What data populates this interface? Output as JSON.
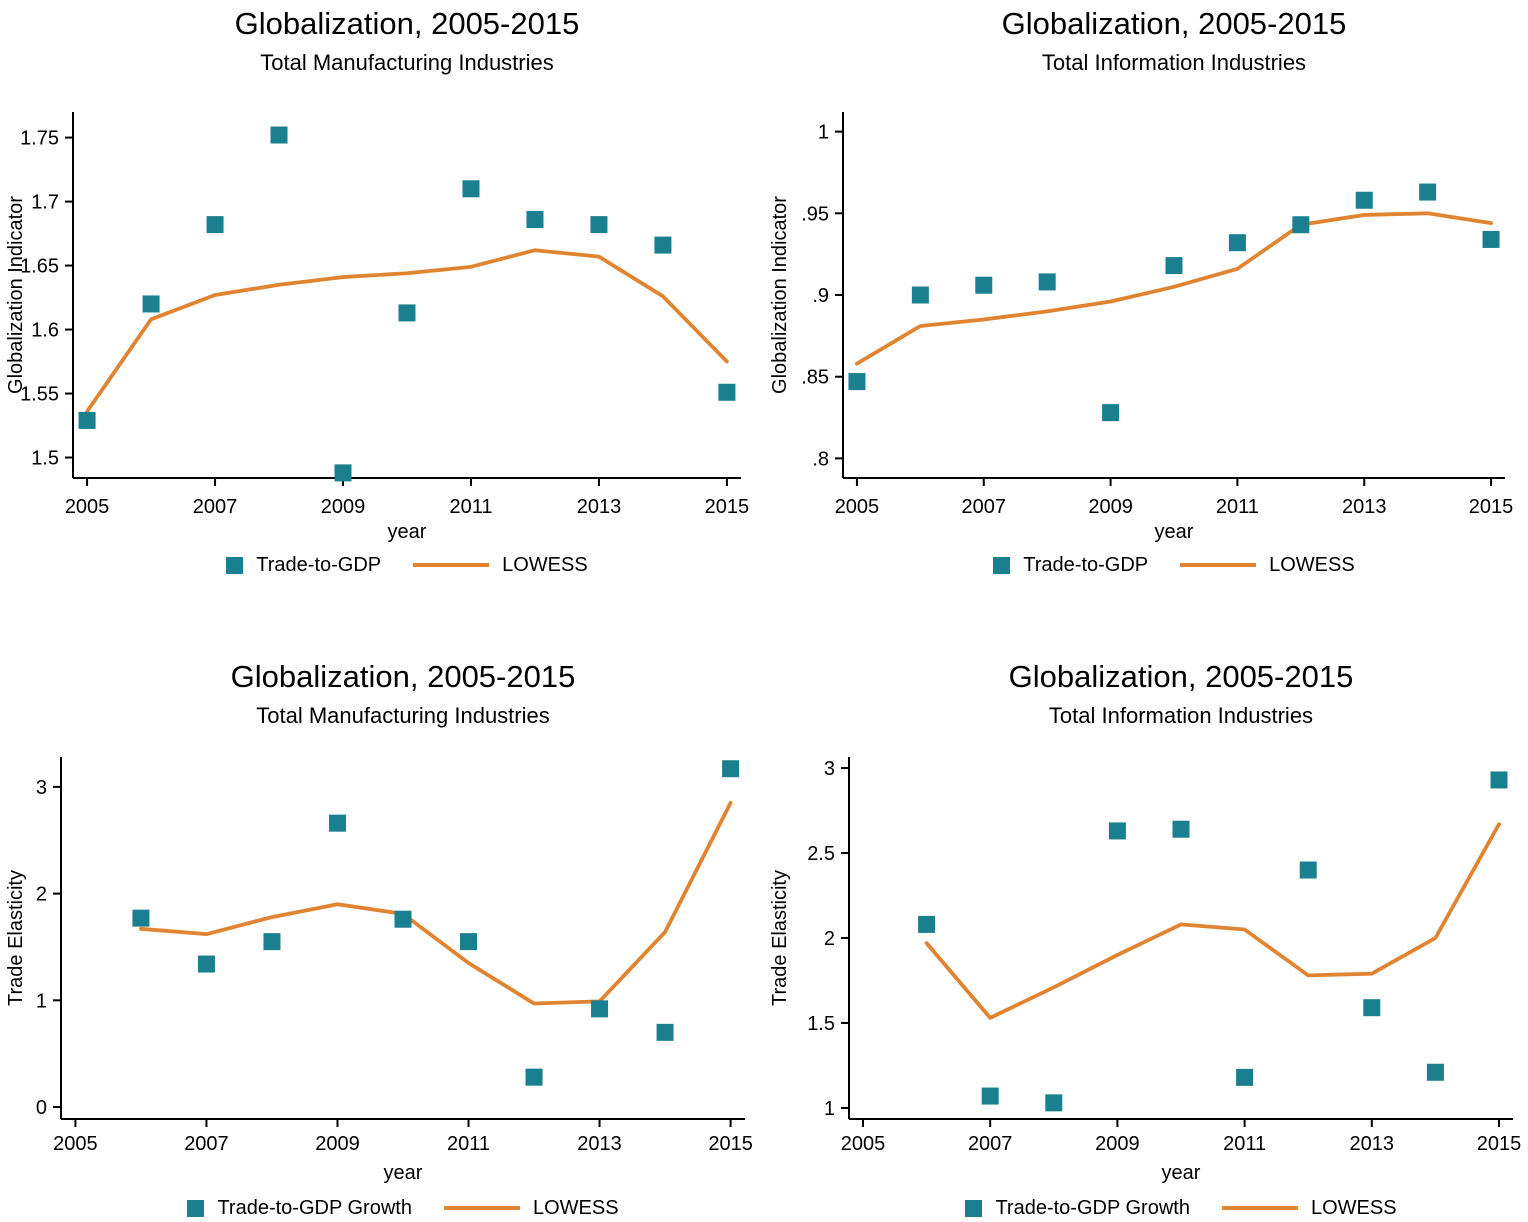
{
  "colors": {
    "scatter": "#1A7F8E",
    "lowess": "#E08432",
    "axis": "#000000",
    "background": "#FFFFFF"
  },
  "chart_data": [
    {
      "id": "manufacturing-globalization-indicator",
      "type": "scatter",
      "title": "Globalization, 2005-2015",
      "subtitle": "Total Manufacturing Industries",
      "xlabel": "year",
      "ylabel": "Globalization Indicator",
      "x": [
        2005,
        2006,
        2007,
        2008,
        2009,
        2010,
        2011,
        2012,
        2013,
        2014,
        2015
      ],
      "series": [
        {
          "name": "Trade-to-GDP",
          "type": "scatter",
          "values": [
            1.529,
            1.62,
            1.682,
            1.752,
            1.488,
            1.613,
            1.71,
            1.686,
            1.682,
            1.666,
            1.551
          ]
        },
        {
          "name": "LOWESS",
          "type": "line",
          "values": [
            1.536,
            1.608,
            1.627,
            1.635,
            1.641,
            1.644,
            1.649,
            1.662,
            1.657,
            1.626,
            1.575
          ]
        }
      ],
      "xticks": [
        2005,
        2007,
        2009,
        2011,
        2013,
        2015
      ],
      "ytick_values": [
        1.5,
        1.55,
        1.6,
        1.65,
        1.7,
        1.75
      ],
      "ytick_labels": [
        "1.5",
        "1.55",
        "1.6",
        "1.65",
        "1.7",
        "1.75"
      ],
      "xlim": [
        2004.78,
        2015.22
      ],
      "ylim": [
        1.484,
        1.77
      ],
      "grid": false,
      "legend_position": "bottom",
      "legend": [
        {
          "swatch": "square",
          "label": "Trade-to-GDP"
        },
        {
          "swatch": "line",
          "label": "LOWESS"
        }
      ]
    },
    {
      "id": "information-globalization-indicator",
      "type": "scatter",
      "title": "Globalization, 2005-2015",
      "subtitle": "Total Information Industries",
      "xlabel": "year",
      "ylabel": "Globalization Indicator",
      "x": [
        2005,
        2006,
        2007,
        2008,
        2009,
        2010,
        2011,
        2012,
        2013,
        2014,
        2015
      ],
      "series": [
        {
          "name": "Trade-to-GDP",
          "type": "scatter",
          "values": [
            0.847,
            0.9,
            0.906,
            0.908,
            0.828,
            0.918,
            0.932,
            0.943,
            0.958,
            0.963,
            0.934
          ]
        },
        {
          "name": "LOWESS",
          "type": "line",
          "values": [
            0.858,
            0.881,
            0.885,
            0.89,
            0.896,
            0.905,
            0.916,
            0.943,
            0.949,
            0.95,
            0.944
          ]
        }
      ],
      "xticks": [
        2005,
        2007,
        2009,
        2011,
        2013,
        2015
      ],
      "ytick_values": [
        0.8,
        0.85,
        0.9,
        0.95,
        1.0
      ],
      "ytick_labels": [
        ".8",
        ".85",
        ".9",
        ".95",
        "1"
      ],
      "xlim": [
        2004.78,
        2015.22
      ],
      "ylim": [
        0.788,
        1.012
      ],
      "grid": false,
      "legend_position": "bottom",
      "legend": [
        {
          "swatch": "square",
          "label": "Trade-to-GDP"
        },
        {
          "swatch": "line",
          "label": "LOWESS"
        }
      ]
    },
    {
      "id": "manufacturing-trade-elasticity",
      "type": "scatter",
      "title": "Globalization, 2005-2015",
      "subtitle": "Total Manufacturing Industries",
      "xlabel": "year",
      "ylabel": "Trade Elasticity",
      "x": [
        2006,
        2007,
        2008,
        2009,
        2010,
        2011,
        2012,
        2013,
        2014,
        2015
      ],
      "series": [
        {
          "name": "Trade-to-GDP Growth",
          "type": "scatter",
          "values": [
            1.77,
            1.34,
            1.55,
            2.66,
            1.76,
            1.55,
            0.28,
            0.92,
            0.7,
            3.17
          ]
        },
        {
          "name": "LOWESS",
          "type": "line",
          "values": [
            1.67,
            1.62,
            1.78,
            1.9,
            1.81,
            1.35,
            0.97,
            0.99,
            1.64,
            2.85
          ]
        }
      ],
      "xticks": [
        2005,
        2007,
        2009,
        2011,
        2013,
        2015
      ],
      "ytick_values": [
        0,
        1,
        2,
        3
      ],
      "ytick_labels": [
        "0",
        "1",
        "2",
        "3"
      ],
      "xlim": [
        2004.78,
        2015.22
      ],
      "ylim": [
        -0.112,
        3.28
      ],
      "grid": false,
      "legend_position": "bottom",
      "legend": [
        {
          "swatch": "square",
          "label": "Trade-to-GDP Growth"
        },
        {
          "swatch": "line",
          "label": "LOWESS"
        }
      ]
    },
    {
      "id": "information-trade-elasticity",
      "type": "scatter",
      "title": "Globalization, 2005-2015",
      "subtitle": "Total Information Industries",
      "xlabel": "year",
      "ylabel": "Trade Elasticity",
      "x": [
        2006,
        2007,
        2008,
        2009,
        2010,
        2011,
        2012,
        2013,
        2014,
        2015
      ],
      "series": [
        {
          "name": "Trade-to-GDP Growth",
          "type": "scatter",
          "values": [
            2.08,
            1.07,
            1.03,
            2.63,
            2.64,
            1.18,
            2.4,
            1.59,
            1.21,
            2.93
          ]
        },
        {
          "name": "LOWESS",
          "type": "line",
          "values": [
            1.97,
            1.53,
            1.71,
            1.9,
            2.08,
            2.05,
            1.78,
            1.79,
            2.0,
            2.67
          ]
        }
      ],
      "xticks": [
        2005,
        2007,
        2009,
        2011,
        2013,
        2015
      ],
      "ytick_values": [
        1,
        1.5,
        2,
        2.5,
        3
      ],
      "ytick_labels": [
        "1",
        "1.5",
        "2",
        "2.5",
        "3"
      ],
      "xlim": [
        2004.78,
        2015.22
      ],
      "ylim": [
        0.935,
        3.065
      ],
      "grid": false,
      "legend_position": "bottom",
      "legend": [
        {
          "swatch": "square",
          "label": "Trade-to-GDP Growth"
        },
        {
          "swatch": "line",
          "label": "LOWESS"
        }
      ]
    }
  ]
}
